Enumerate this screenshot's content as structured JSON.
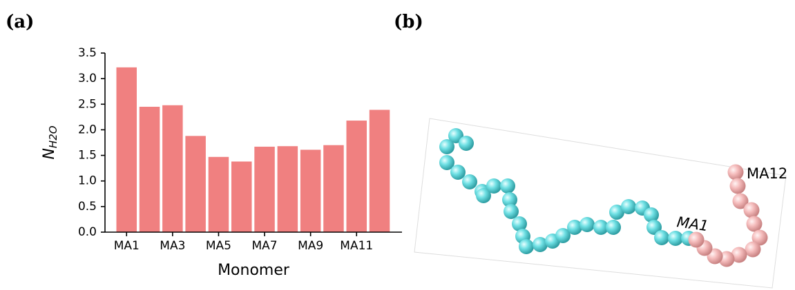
{
  "chart_data": {
    "type": "bar",
    "x_label": "Monomer",
    "y_label": {
      "main": "N",
      "subscript": "H2O"
    },
    "categories": [
      "MA1",
      null,
      "MA3",
      null,
      "MA5",
      null,
      "MA7",
      null,
      "MA9",
      null,
      "MA11",
      null
    ],
    "values": [
      3.22,
      2.45,
      2.48,
      1.88,
      1.47,
      1.38,
      1.67,
      1.68,
      1.61,
      1.7,
      2.18,
      2.39
    ],
    "color": "#f08080",
    "ylim": [
      0,
      3.5
    ],
    "yticks": [
      {
        "value": 0,
        "label": "0.0"
      },
      0.5,
      {
        "value": 1,
        "label": "1.0"
      },
      1.5,
      {
        "value": 2,
        "label": "2.0"
      },
      2.5,
      {
        "value": 3,
        "label": "3.0"
      },
      3.5
    ],
    "grid": false
  },
  "panels": {
    "a": "(a)",
    "b": "(b)"
  },
  "molecule": {
    "start_label": "MA1",
    "end_label": "MA12"
  }
}
